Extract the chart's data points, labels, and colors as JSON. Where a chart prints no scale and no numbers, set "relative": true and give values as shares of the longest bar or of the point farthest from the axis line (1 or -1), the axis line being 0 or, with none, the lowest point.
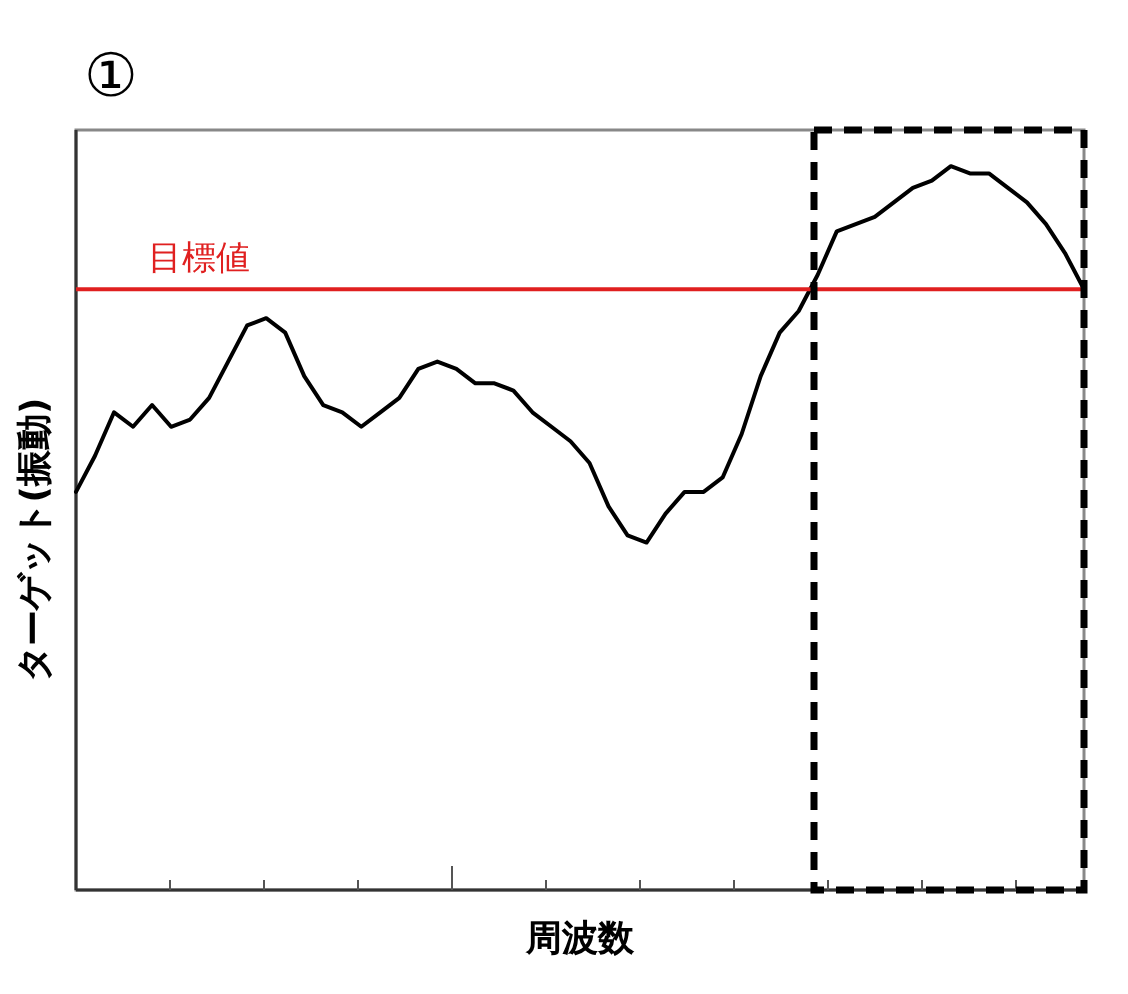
{
  "chart_data": {
    "type": "line",
    "title": "①",
    "xlabel": "周波数",
    "ylabel": "ターゲット(振動)",
    "relative": true,
    "marker": "none",
    "line_style": "solid",
    "categories": [
      null,
      null,
      null,
      null,
      null,
      null,
      null,
      null,
      null,
      null,
      null,
      null,
      null,
      null,
      null,
      null,
      null,
      null,
      null,
      null,
      null,
      null,
      null,
      null,
      null,
      null,
      null,
      null,
      null,
      null,
      null,
      null,
      null,
      null,
      null,
      null,
      null,
      null,
      null,
      null,
      null,
      null,
      null,
      null,
      null,
      null,
      null,
      null,
      null,
      null,
      null,
      null,
      null,
      null
    ],
    "series": [
      {
        "color": "#000000",
        "values": [
          0.55,
          0.6,
          0.66,
          0.64,
          0.67,
          0.64,
          0.65,
          0.68,
          0.73,
          0.78,
          0.79,
          0.77,
          0.71,
          0.67,
          0.66,
          0.64,
          0.66,
          0.68,
          0.72,
          0.73,
          0.72,
          0.7,
          0.7,
          0.69,
          0.66,
          0.64,
          0.62,
          0.59,
          0.53,
          0.49,
          0.48,
          0.52,
          0.55,
          0.55,
          0.57,
          0.63,
          0.71,
          0.77,
          0.8,
          0.85,
          0.91,
          0.92,
          0.93,
          0.95,
          0.97,
          0.98,
          1,
          0.99,
          0.99,
          0.97,
          0.95,
          0.92,
          0.88,
          0.83
        ]
      }
    ],
    "ref_lines": [
      {
        "axis": "y",
        "value": 0.83,
        "label": "目標値",
        "color": "#e02020",
        "line_style": "solid"
      }
    ]
  }
}
